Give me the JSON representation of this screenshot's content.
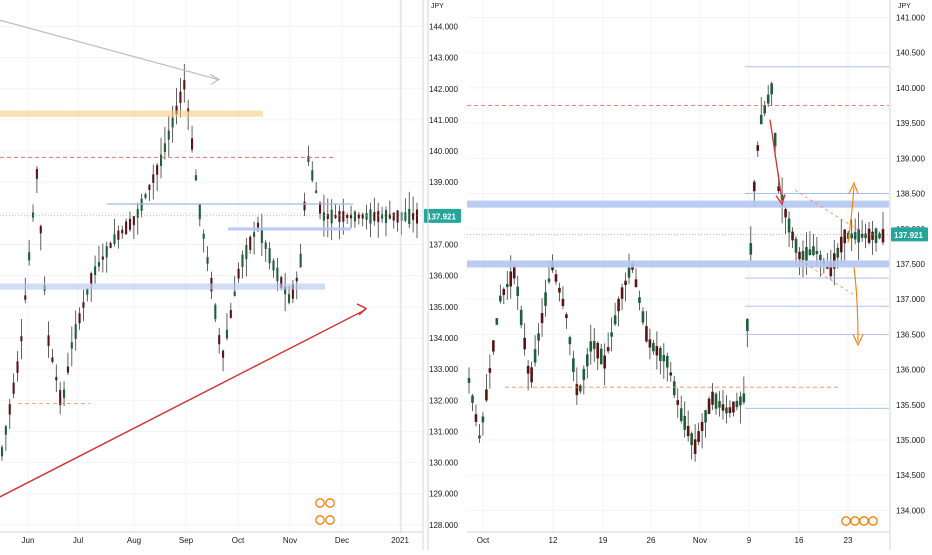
{
  "chart_data": [
    {
      "type": "candlestick",
      "timeframe": "daily",
      "currency_label": "JPY",
      "price_now": "137.921",
      "ylim": [
        127.9,
        144.4
      ],
      "y_ticks": [
        "128.000",
        "129.000",
        "130.000",
        "131.000",
        "132.000",
        "133.000",
        "134.000",
        "135.000",
        "136.000",
        "137.000",
        "138.000",
        "139.000",
        "140.000",
        "141.000",
        "142.000",
        "143.000",
        "144.000"
      ],
      "x_ticks": [
        "Jun",
        "Jul",
        "Aug",
        "Sep",
        "Oct",
        "Nov",
        "Dec",
        "2021"
      ],
      "approx_close_series": [
        {
          "date": "2020-06",
          "close": 131.2
        },
        {
          "date": "2020-06-mid",
          "close": 139.3
        },
        {
          "date": "2020-07",
          "close": 132.0
        },
        {
          "date": "2020-07-mid",
          "close": 136.0
        },
        {
          "date": "2020-08",
          "close": 137.3
        },
        {
          "date": "2020-08-mid",
          "close": 139.8
        },
        {
          "date": "2020-09",
          "close": 141.8
        },
        {
          "date": "2020-09-mid",
          "close": 136.0
        },
        {
          "date": "2020-09-end",
          "close": 133.3
        },
        {
          "date": "2020-10",
          "close": 136.2
        },
        {
          "date": "2020-10-mid",
          "close": 137.5
        },
        {
          "date": "2020-11",
          "close": 135.3
        },
        {
          "date": "2020-11-mid",
          "close": 139.9
        },
        {
          "date": "2020-11-end",
          "close": 137.9
        }
      ]
    },
    {
      "type": "candlestick",
      "timeframe": "4h",
      "currency_label": "JPY",
      "price_now": "137.921",
      "ylim": [
        133.75,
        141.05
      ],
      "y_ticks": [
        "134.000",
        "134.500",
        "135.000",
        "135.500",
        "136.000",
        "136.500",
        "137.000",
        "137.500",
        "138.000",
        "138.500",
        "139.000",
        "139.500",
        "140.000",
        "140.500",
        "141.000"
      ],
      "x_ticks": [
        "Oct",
        "12",
        "19",
        "26",
        "Nov",
        "9",
        "16",
        "23"
      ],
      "approx_close_series": [
        {
          "date": "Oct 5",
          "close": 136.0
        },
        {
          "date": "Oct 8",
          "close": 137.4
        },
        {
          "date": "Oct 12",
          "close": 137.5
        },
        {
          "date": "Oct 16",
          "close": 136.3
        },
        {
          "date": "Oct 19",
          "close": 136.7
        },
        {
          "date": "Oct 22",
          "close": 137.4
        },
        {
          "date": "Oct 26",
          "close": 136.4
        },
        {
          "date": "Oct 30",
          "close": 135.2
        },
        {
          "date": "Nov 2",
          "close": 135.6
        },
        {
          "date": "Nov 6",
          "close": 135.9
        },
        {
          "date": "Nov 9",
          "close": 139.5
        },
        {
          "date": "Nov 11",
          "close": 139.9
        },
        {
          "date": "Nov 13",
          "close": 138.1
        },
        {
          "date": "Nov 16",
          "close": 137.6
        },
        {
          "date": "Nov 19",
          "close": 137.8
        },
        {
          "date": "Nov 21",
          "close": 137.3
        },
        {
          "date": "Nov 23",
          "close": 137.9
        }
      ]
    }
  ]
}
